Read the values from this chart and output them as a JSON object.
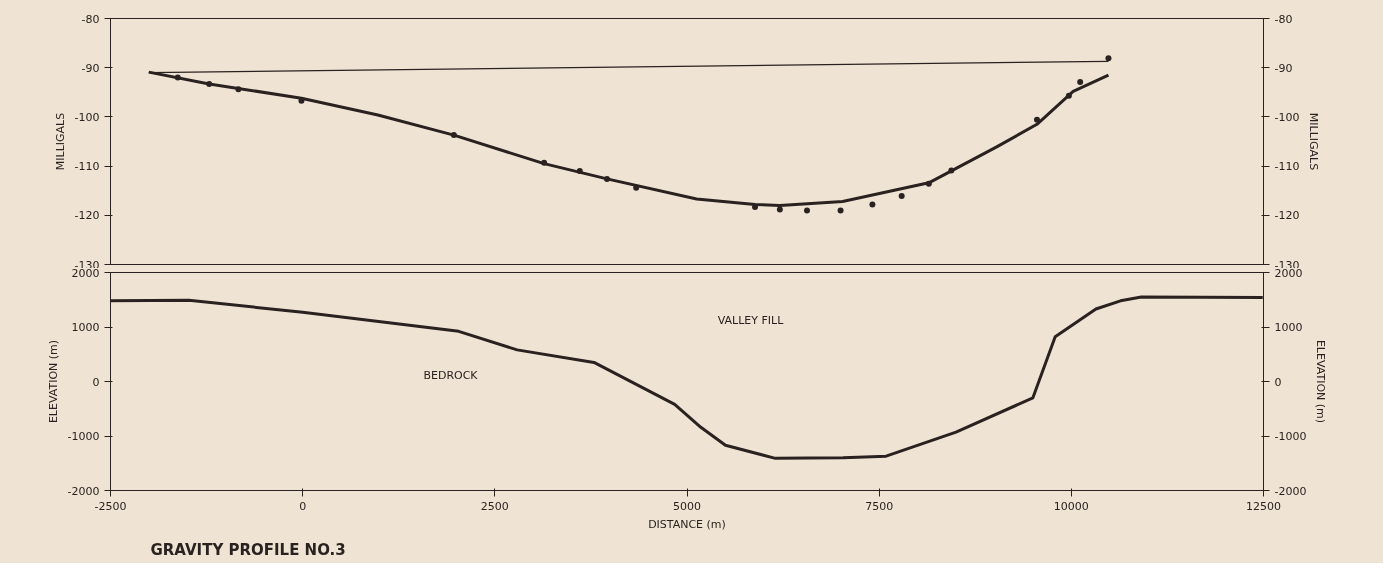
{
  "chart_data": [
    {
      "type": "line",
      "ylabel": "MILLIGALS",
      "y2label": "MILLIGALS",
      "xlim": [
        -2500,
        12500
      ],
      "ylim": [
        -130,
        -80
      ],
      "yticks": [
        -130,
        -120,
        -110,
        -100,
        -90,
        -80
      ],
      "y2lim": [
        -130,
        -80
      ],
      "y2ticks": [
        -130,
        -120,
        -110,
        -100,
        -90,
        -80
      ],
      "tick_labels": "y",
      "grid": false,
      "series": [
        {
          "color": "#2a2220",
          "x": [
            -2002,
            -1216,
            -16,
            978,
            1967,
            3141,
            3959,
            5125,
            5885,
            6208,
            7024,
            8146,
            9029,
            9553,
            10024,
            10483
          ],
          "values": [
            -90.9,
            -93.3,
            -96.2,
            -99.6,
            -103.7,
            -109.5,
            -112.6,
            -116.7,
            -117.8,
            -118.0,
            -117.2,
            -113.4,
            -106.1,
            -101.5,
            -94.8,
            -91.5
          ]
        },
        {
          "color": "#2a2220",
          "x": [
            -2002,
            10483
          ],
          "values": [
            -91.0,
            -88.7
          ]
        },
        {
          "type": "scatter",
          "marker": "circle",
          "color": "#2a2220",
          "x": [
            -1625,
            -1216,
            -836,
            -16,
            1967,
            3141,
            3605,
            3959,
            4339,
            5885,
            6208,
            6561,
            6998,
            7412,
            7793,
            8146,
            8439,
            9553,
            9968,
            10115,
            10483
          ],
          "values": [
            -92.0,
            -93.3,
            -94.4,
            -96.7,
            -103.7,
            -109.3,
            -111.0,
            -112.6,
            -114.4,
            -118.3,
            -118.8,
            -119.0,
            -119.0,
            -117.8,
            -116.1,
            -113.6,
            -110.9,
            -100.6,
            -95.7,
            -92.9,
            -88.1
          ]
        }
      ]
    },
    {
      "type": "line",
      "title": "GRAVITY PROFILE NO.3",
      "xlabel": "DISTANCE (m)",
      "ylabel": "ELEVATION (m)",
      "y2label": "ELEVATION (m)",
      "xlim": [
        -2500,
        12500
      ],
      "xticks": [
        -2500,
        0,
        2500,
        5000,
        7500,
        10000,
        12500
      ],
      "ylim": [
        -2000,
        2000
      ],
      "yticks": [
        -2000,
        -1000,
        0,
        1000,
        2000
      ],
      "y2lim": [
        -2000,
        2000
      ],
      "y2ticks": [
        -2000,
        -1000,
        0,
        1000,
        2000
      ],
      "grid": false,
      "annotations": [
        "VALLEY FILL",
        "BEDROCK"
      ],
      "series": [
        {
          "color": "#2a2220",
          "x": [
            -2500,
            -1480,
            0,
            2030,
            2790,
            3790,
            4840,
            5180,
            5500,
            6150,
            7030,
            7590,
            8500,
            9500,
            9790,
            10320,
            10640,
            10910,
            12490
          ],
          "values": [
            1480,
            1490,
            1270,
            920,
            580,
            350,
            -420,
            -840,
            -1170,
            -1410,
            -1400,
            -1370,
            -930,
            -300,
            820,
            1330,
            1480,
            1550,
            1540
          ]
        }
      ]
    }
  ]
}
